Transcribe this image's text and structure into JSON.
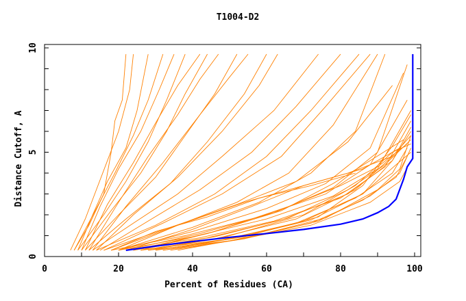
{
  "chart_data": {
    "type": "line",
    "title": "T1004-D2",
    "xlabel": "Percent of Residues (CA)",
    "ylabel": "Distance Cutoff, A",
    "xlim": [
      0,
      100
    ],
    "ylim": [
      0,
      10
    ],
    "xticks": [
      "0",
      "20",
      "40",
      "60",
      "80",
      "100"
    ],
    "yticks": [
      "0",
      "5",
      "10"
    ],
    "grid": false,
    "colors": {
      "models": "#ff8000",
      "highlight": "#0000ff"
    },
    "highlight_series": [
      [
        22,
        0.3
      ],
      [
        30,
        0.5
      ],
      [
        40,
        0.72
      ],
      [
        50,
        0.92
      ],
      [
        60,
        1.1
      ],
      [
        70,
        1.3
      ],
      [
        80,
        1.55
      ],
      [
        86,
        1.8
      ],
      [
        90,
        2.1
      ],
      [
        93,
        2.4
      ],
      [
        95,
        2.75
      ],
      [
        97,
        3.7
      ],
      [
        98,
        4.3
      ],
      [
        99.5,
        4.7
      ],
      [
        99.5,
        9.7
      ]
    ],
    "series": [
      [
        [
          8,
          0.3
        ],
        [
          12,
          1.5
        ],
        [
          16,
          3
        ],
        [
          18,
          5
        ],
        [
          19,
          6.5
        ],
        [
          21,
          7.5
        ],
        [
          22,
          9.7
        ]
      ],
      [
        [
          7,
          0.3
        ],
        [
          11,
          1.8
        ],
        [
          14,
          3.2
        ],
        [
          17,
          4.6
        ],
        [
          20,
          6
        ],
        [
          23,
          8
        ],
        [
          24,
          9.7
        ]
      ],
      [
        [
          9,
          0.3
        ],
        [
          13,
          2
        ],
        [
          17,
          3.6
        ],
        [
          22,
          5.2
        ],
        [
          25,
          7
        ],
        [
          28,
          9.7
        ]
      ],
      [
        [
          8,
          0.3
        ],
        [
          14,
          2.3
        ],
        [
          19,
          4
        ],
        [
          24,
          5.8
        ],
        [
          28,
          7.5
        ],
        [
          32,
          9.7
        ]
      ],
      [
        [
          10,
          0.3
        ],
        [
          15,
          2.4
        ],
        [
          20,
          4.2
        ],
        [
          26,
          6
        ],
        [
          31,
          8
        ],
        [
          35,
          9.7
        ]
      ],
      [
        [
          9,
          0.3
        ],
        [
          16,
          2
        ],
        [
          22,
          3.6
        ],
        [
          28,
          5.5
        ],
        [
          33,
          7.5
        ],
        [
          38,
          9.7
        ]
      ],
      [
        [
          11,
          0.3
        ],
        [
          17,
          2.5
        ],
        [
          24,
          4.5
        ],
        [
          30,
          6.4
        ],
        [
          36,
          8.2
        ],
        [
          42,
          9.7
        ]
      ],
      [
        [
          10,
          0.3
        ],
        [
          18,
          2.2
        ],
        [
          26,
          4
        ],
        [
          33,
          6
        ],
        [
          38,
          7.8
        ],
        [
          44,
          9.7
        ]
      ],
      [
        [
          12,
          0.3
        ],
        [
          20,
          2.6
        ],
        [
          28,
          4.8
        ],
        [
          36,
          6.8
        ],
        [
          42,
          8.5
        ],
        [
          47,
          9.7
        ]
      ],
      [
        [
          11,
          0.3
        ],
        [
          20,
          2
        ],
        [
          30,
          3.8
        ],
        [
          38,
          5.8
        ],
        [
          46,
          7.8
        ],
        [
          52,
          9.7
        ]
      ],
      [
        [
          13,
          0.3
        ],
        [
          22,
          2.4
        ],
        [
          32,
          4.5
        ],
        [
          42,
          6.8
        ],
        [
          50,
          8.6
        ],
        [
          55,
          9.7
        ]
      ],
      [
        [
          12,
          0.3
        ],
        [
          22,
          1.8
        ],
        [
          34,
          3.5
        ],
        [
          44,
          5.5
        ],
        [
          54,
          7.8
        ],
        [
          60,
          9.7
        ]
      ],
      [
        [
          14,
          0.3
        ],
        [
          24,
          2
        ],
        [
          36,
          3.8
        ],
        [
          48,
          6
        ],
        [
          58,
          8.2
        ],
        [
          63,
          9.7
        ]
      ],
      [
        [
          13,
          0.3
        ],
        [
          24,
          1.6
        ],
        [
          36,
          3
        ],
        [
          48,
          4.8
        ],
        [
          62,
          7
        ],
        [
          74,
          9.7
        ]
      ],
      [
        [
          15,
          0.3
        ],
        [
          28,
          1.7
        ],
        [
          42,
          3.2
        ],
        [
          56,
          5
        ],
        [
          68,
          7.2
        ],
        [
          80,
          9.7
        ]
      ],
      [
        [
          14,
          0.3
        ],
        [
          30,
          1.5
        ],
        [
          46,
          3
        ],
        [
          60,
          4.8
        ],
        [
          72,
          7
        ],
        [
          85,
          9.7
        ]
      ],
      [
        [
          16,
          0.3
        ],
        [
          32,
          1.6
        ],
        [
          48,
          3
        ],
        [
          64,
          4.8
        ],
        [
          76,
          7.2
        ],
        [
          88,
          9.7
        ]
      ],
      [
        [
          18,
          0.3
        ],
        [
          36,
          1.5
        ],
        [
          52,
          2.6
        ],
        [
          66,
          4
        ],
        [
          78,
          6.3
        ],
        [
          90,
          9.7
        ]
      ],
      [
        [
          20,
          0.3
        ],
        [
          40,
          1.4
        ],
        [
          58,
          2.6
        ],
        [
          72,
          4
        ],
        [
          84,
          6
        ],
        [
          92,
          9.7
        ]
      ],
      [
        [
          16,
          0.3
        ],
        [
          34,
          1.4
        ],
        [
          52,
          2.5
        ],
        [
          68,
          3.6
        ],
        [
          82,
          5.5
        ],
        [
          94,
          8.2
        ]
      ],
      [
        [
          20,
          0.3
        ],
        [
          40,
          1.2
        ],
        [
          60,
          2.3
        ],
        [
          76,
          3.5
        ],
        [
          88,
          5.2
        ],
        [
          97,
          8.8
        ]
      ],
      [
        [
          22,
          0.3
        ],
        [
          42,
          1.1
        ],
        [
          62,
          2.1
        ],
        [
          78,
          3.3
        ],
        [
          90,
          5
        ],
        [
          98,
          9.2
        ]
      ],
      [
        [
          18,
          0.3
        ],
        [
          38,
          1.0
        ],
        [
          58,
          1.9
        ],
        [
          76,
          3.0
        ],
        [
          88,
          4.4
        ],
        [
          98,
          7.5
        ]
      ],
      [
        [
          20,
          0.3
        ],
        [
          40,
          0.95
        ],
        [
          60,
          1.8
        ],
        [
          78,
          2.9
        ],
        [
          90,
          4.2
        ],
        [
          99,
          7
        ]
      ],
      [
        [
          22,
          0.3
        ],
        [
          42,
          0.9
        ],
        [
          62,
          1.7
        ],
        [
          80,
          2.8
        ],
        [
          92,
          4.3
        ],
        [
          99,
          6.5
        ]
      ],
      [
        [
          24,
          0.3
        ],
        [
          44,
          0.9
        ],
        [
          64,
          1.75
        ],
        [
          82,
          3.0
        ],
        [
          94,
          4.6
        ],
        [
          99,
          6
        ]
      ],
      [
        [
          24,
          0.3
        ],
        [
          46,
          0.95
        ],
        [
          66,
          1.85
        ],
        [
          82,
          3.2
        ],
        [
          92,
          4.4
        ],
        [
          99,
          5.6
        ]
      ],
      [
        [
          26,
          0.3
        ],
        [
          46,
          0.85
        ],
        [
          68,
          1.8
        ],
        [
          84,
          3.2
        ],
        [
          94,
          4.8
        ],
        [
          99,
          5.8
        ]
      ],
      [
        [
          28,
          0.3
        ],
        [
          48,
          0.9
        ],
        [
          70,
          2.0
        ],
        [
          84,
          3.4
        ],
        [
          94,
          5.0
        ],
        [
          99,
          5.4
        ]
      ],
      [
        [
          26,
          0.3
        ],
        [
          48,
          0.8
        ],
        [
          68,
          1.6
        ],
        [
          84,
          2.8
        ],
        [
          94,
          4.0
        ],
        [
          98,
          5.2
        ]
      ],
      [
        [
          30,
          0.3
        ],
        [
          50,
          0.85
        ],
        [
          70,
          1.7
        ],
        [
          86,
          3.0
        ],
        [
          95,
          4.4
        ],
        [
          99,
          5.0
        ]
      ],
      [
        [
          28,
          0.3
        ],
        [
          50,
          0.75
        ],
        [
          72,
          1.6
        ],
        [
          86,
          2.7
        ],
        [
          95,
          3.8
        ],
        [
          98,
          4.8
        ]
      ],
      [
        [
          32,
          0.3
        ],
        [
          52,
          0.8
        ],
        [
          72,
          1.5
        ],
        [
          88,
          2.6
        ],
        [
          96,
          3.6
        ],
        [
          99,
          4.6
        ]
      ],
      [
        [
          30,
          0.3
        ],
        [
          54,
          0.95
        ],
        [
          74,
          1.9
        ],
        [
          86,
          3.4
        ],
        [
          94,
          5.3
        ],
        [
          99,
          6.8
        ]
      ],
      [
        [
          24,
          0.3
        ],
        [
          44,
          1.1
        ],
        [
          64,
          2.2
        ],
        [
          78,
          3.5
        ],
        [
          88,
          4.6
        ],
        [
          97,
          5.6
        ]
      ],
      [
        [
          26,
          0.3
        ],
        [
          46,
          1.2
        ],
        [
          66,
          2.4
        ],
        [
          80,
          3.4
        ],
        [
          90,
          4.3
        ],
        [
          98,
          5.4
        ]
      ],
      [
        [
          22,
          0.3
        ],
        [
          40,
          1.3
        ],
        [
          56,
          2.4
        ],
        [
          70,
          3.4
        ],
        [
          86,
          4.2
        ],
        [
          96,
          5.2
        ]
      ],
      [
        [
          20,
          0.3
        ],
        [
          36,
          1.5
        ],
        [
          54,
          2.6
        ],
        [
          66,
          3.2
        ],
        [
          82,
          4.0
        ],
        [
          94,
          4.8
        ]
      ],
      [
        [
          18,
          0.3
        ],
        [
          30,
          1.2
        ],
        [
          44,
          1.9
        ],
        [
          58,
          2.8
        ],
        [
          72,
          3.4
        ],
        [
          84,
          4.0
        ]
      ],
      [
        [
          34,
          0.3
        ],
        [
          54,
          0.85
        ],
        [
          74,
          1.7
        ],
        [
          88,
          2.9
        ],
        [
          96,
          4.0
        ],
        [
          99,
          5.2
        ]
      ],
      [
        [
          36,
          0.3
        ],
        [
          56,
          0.95
        ],
        [
          76,
          1.85
        ],
        [
          90,
          3.2
        ],
        [
          96,
          4.2
        ],
        [
          99,
          5.8
        ]
      ],
      [
        [
          32,
          0.3
        ],
        [
          52,
          0.9
        ],
        [
          72,
          1.75
        ],
        [
          86,
          3.0
        ],
        [
          94,
          4.6
        ],
        [
          99,
          6.2
        ]
      ]
    ]
  }
}
